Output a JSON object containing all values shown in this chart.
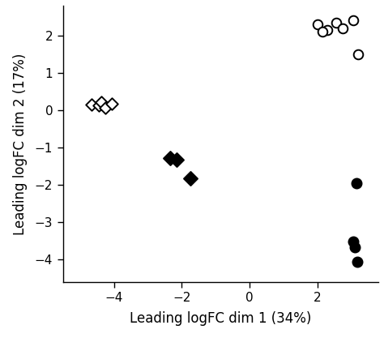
{
  "open_circles": {
    "x": [
      2.0,
      2.3,
      2.55,
      2.75,
      2.15,
      3.05,
      3.2
    ],
    "y": [
      2.3,
      2.15,
      2.35,
      2.2,
      2.1,
      2.4,
      1.5
    ],
    "marker": "o",
    "facecolor": "white",
    "edgecolor": "black",
    "size": 70,
    "linewidth": 1.4
  },
  "open_diamonds": {
    "x": [
      -4.65,
      -4.45,
      -4.38,
      -4.25,
      -4.05
    ],
    "y": [
      0.15,
      0.12,
      0.22,
      0.06,
      0.18
    ],
    "marker": "D",
    "facecolor": "white",
    "edgecolor": "black",
    "size": 55,
    "linewidth": 1.4
  },
  "filled_diamonds": {
    "x": [
      -2.35,
      -2.15,
      -1.75
    ],
    "y": [
      -1.28,
      -1.33,
      -1.82
    ],
    "marker": "D",
    "facecolor": "black",
    "edgecolor": "black",
    "size": 75,
    "linewidth": 1.4
  },
  "filled_circles": {
    "x": [
      3.15,
      3.05,
      3.1,
      3.18
    ],
    "y": [
      -1.95,
      -3.52,
      -3.68,
      -4.05
    ],
    "marker": "o",
    "facecolor": "black",
    "edgecolor": "black",
    "size": 75,
    "linewidth": 1.4
  },
  "xlabel": "Leading logFC dim 1 (34%)",
  "ylabel": "Leading logFC dim 2 (17%)",
  "xlim": [
    -5.5,
    3.8
  ],
  "ylim": [
    -4.6,
    2.8
  ],
  "xticks": [
    -4,
    -2,
    0,
    2
  ],
  "yticks": [
    -4,
    -3,
    -2,
    -1,
    0,
    1,
    2
  ],
  "background_color": "#ffffff",
  "plot_bg": "#ffffff",
  "xlabel_fontsize": 12,
  "ylabel_fontsize": 12,
  "tick_fontsize": 11
}
